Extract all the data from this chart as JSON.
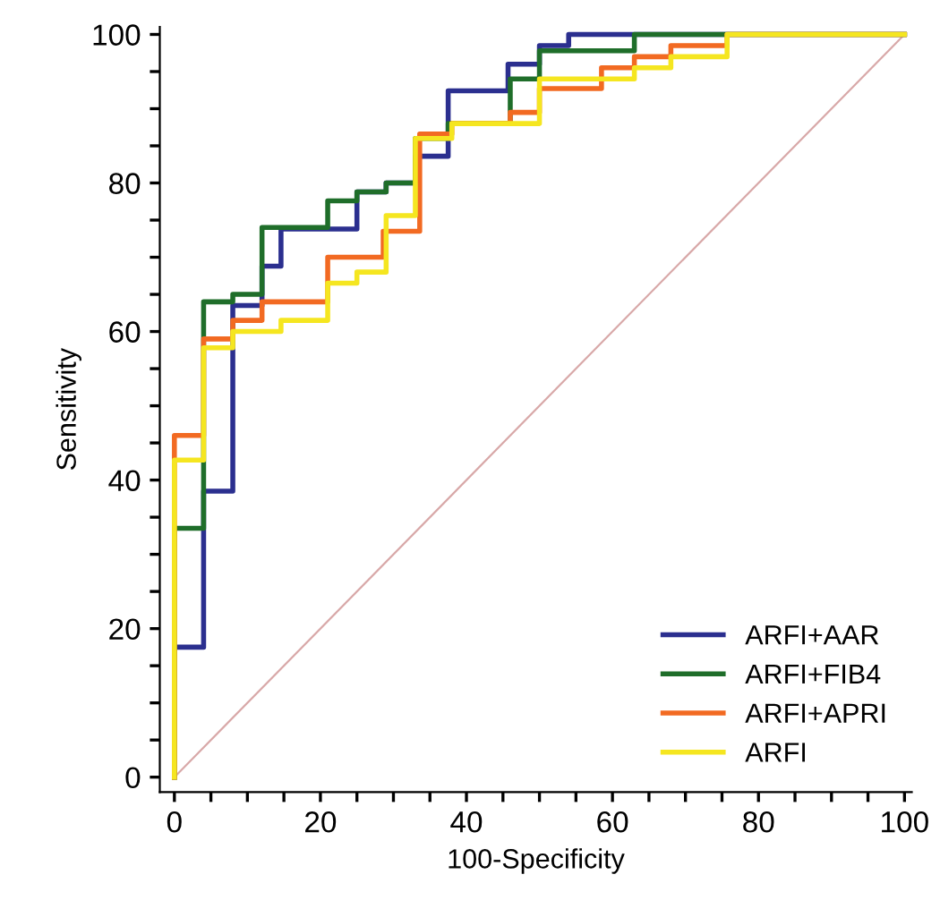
{
  "chart_data": {
    "type": "step",
    "xlabel": "100-Specificity",
    "ylabel": "Sensitivity",
    "xlim": [
      -2,
      101
    ],
    "ylim": [
      -2,
      101
    ],
    "xticks": [
      0,
      {
        "value": 5,
        "label": null
      },
      {
        "value": 10,
        "label": null
      },
      {
        "value": 15,
        "label": null
      },
      20,
      {
        "value": 25,
        "label": null
      },
      {
        "value": 30,
        "label": null
      },
      {
        "value": 35,
        "label": null
      },
      40,
      {
        "value": 45,
        "label": null
      },
      {
        "value": 50,
        "label": null
      },
      {
        "value": 55,
        "label": null
      },
      60,
      {
        "value": 65,
        "label": null
      },
      {
        "value": 70,
        "label": null
      },
      {
        "value": 75,
        "label": null
      },
      80,
      {
        "value": 85,
        "label": null
      },
      {
        "value": 90,
        "label": null
      },
      {
        "value": 95,
        "label": null
      },
      100
    ],
    "yticks": [
      0,
      {
        "value": 5,
        "label": null
      },
      {
        "value": 10,
        "label": null
      },
      {
        "value": 15,
        "label": null
      },
      20,
      {
        "value": 25,
        "label": null
      },
      {
        "value": 30,
        "label": null
      },
      {
        "value": 35,
        "label": null
      },
      40,
      {
        "value": 45,
        "label": null
      },
      {
        "value": 50,
        "label": null
      },
      {
        "value": 55,
        "label": null
      },
      60,
      {
        "value": 65,
        "label": null
      },
      {
        "value": 70,
        "label": null
      },
      {
        "value": 75,
        "label": null
      },
      80,
      {
        "value": 85,
        "label": null
      },
      {
        "value": 90,
        "label": null
      },
      {
        "value": 95,
        "label": null
      },
      100
    ],
    "grid": false,
    "legend": "bottom right",
    "line_style": "solid",
    "marker": "none",
    "series": [
      {
        "type": "line",
        "color": "#d8a8a8",
        "x": [
          0,
          100
        ],
        "values": [
          0,
          100
        ]
      },
      {
        "name": "ARFI+AAR",
        "color": "#2b2f8f",
        "x": [
          0,
          0,
          4,
          8,
          12,
          14.6,
          25,
          29,
          33,
          37.5,
          45.7,
          50,
          54,
          100
        ],
        "values": [
          0,
          17.5,
          38.5,
          63.5,
          68.8,
          73.8,
          78.8,
          80,
          83.6,
          92.4,
          96,
          98.5,
          100,
          100
        ]
      },
      {
        "name": "ARFI+FIB4",
        "color": "#1f6e2a",
        "x": [
          0,
          0,
          4,
          8,
          12,
          21,
          25,
          29,
          33,
          37.5,
          46,
          50,
          63,
          100
        ],
        "values": [
          0,
          33.5,
          64,
          65,
          74,
          77.6,
          78.8,
          80,
          86,
          88,
          94,
          97.8,
          100,
          100
        ]
      },
      {
        "name": "ARFI+APRI",
        "color": "#f26a22",
        "x": [
          0,
          0,
          4,
          8,
          12,
          21,
          28.6,
          33.6,
          38,
          46,
          50,
          58.5,
          63,
          68,
          75.7,
          100
        ],
        "values": [
          0,
          46,
          59,
          61.5,
          64,
          70,
          73.5,
          86.6,
          88,
          89.5,
          92.7,
          95.5,
          97,
          98.5,
          100,
          100
        ]
      },
      {
        "name": "ARFI",
        "color": "#f5e620",
        "x": [
          0,
          0,
          4,
          8,
          14.6,
          21,
          25,
          29,
          33,
          38,
          50,
          63,
          68,
          75.7,
          100
        ],
        "values": [
          0,
          42.7,
          57.8,
          60,
          61.5,
          66.5,
          68,
          75.6,
          86,
          88,
          94,
          95.5,
          97,
          100,
          100
        ]
      }
    ]
  }
}
